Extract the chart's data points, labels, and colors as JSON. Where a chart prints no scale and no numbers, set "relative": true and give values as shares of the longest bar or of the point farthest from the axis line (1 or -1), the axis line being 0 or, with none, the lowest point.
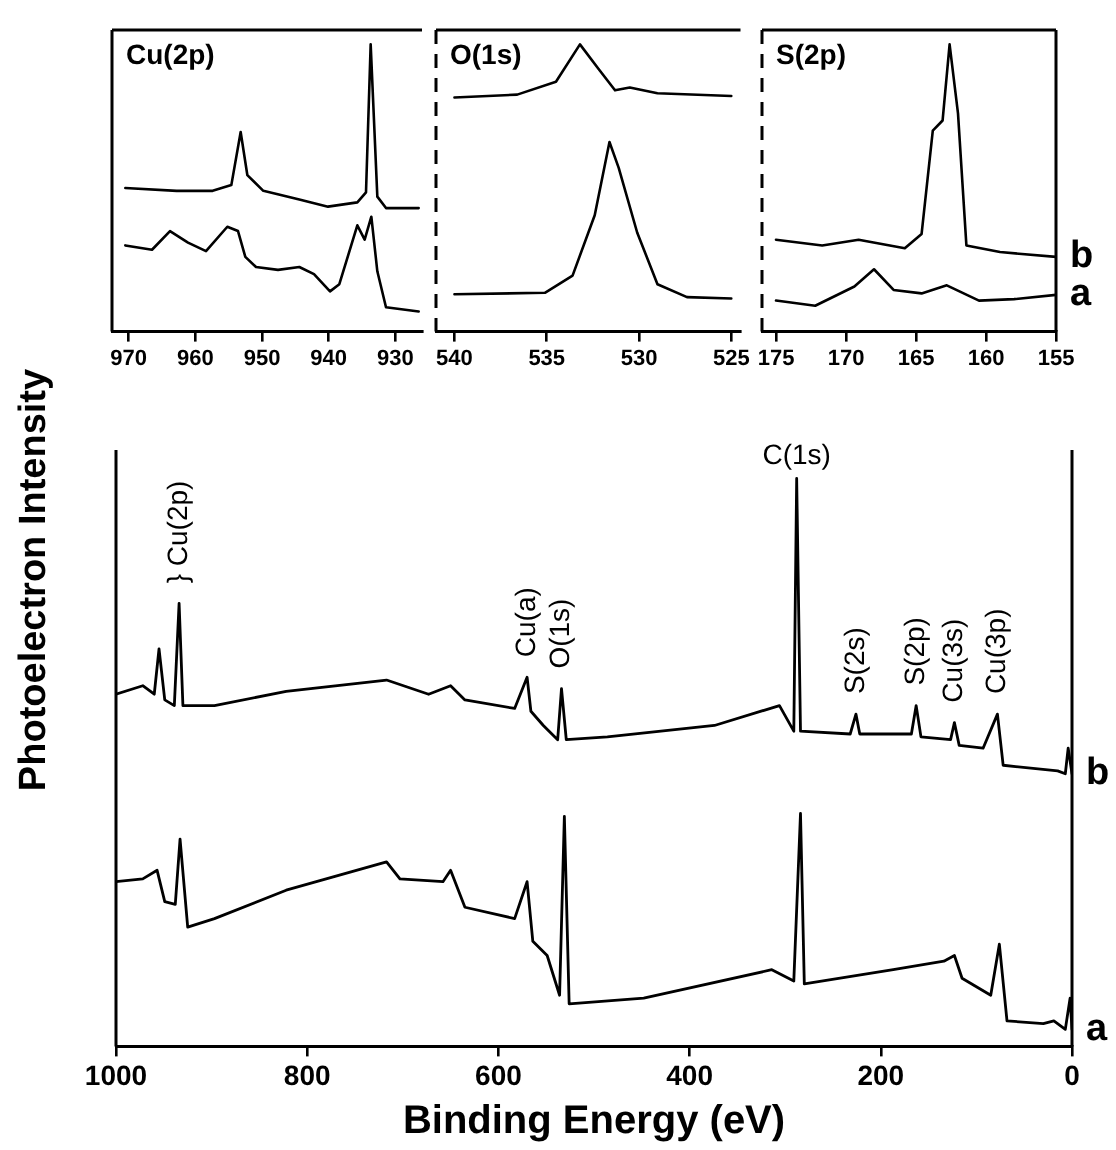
{
  "chart_data": [
    {
      "type": "line",
      "title": "Cu(2p)",
      "relative": true,
      "xlim": [
        972.5,
        926
      ],
      "xticks": [
        970,
        960,
        950,
        940,
        930
      ],
      "series": [
        {
          "color": "#000000",
          "x": [
            970.5,
            962.8,
            957.4,
            954.6,
            953.2,
            952.2,
            949.8,
            944.4,
            940.1,
            935.7,
            934.4,
            933.7,
            932.7,
            931.4,
            926.5
          ],
          "values": [
            0.5,
            0.49,
            0.49,
            0.51,
            0.695,
            0.545,
            0.49,
            0.46,
            0.435,
            0.45,
            0.485,
            1.0,
            0.47,
            0.43,
            0.43
          ]
        },
        {
          "color": "#000000",
          "x": [
            970.5,
            966.5,
            963.8,
            961.1,
            958.4,
            955.2,
            953.6,
            952.5,
            950.9,
            947.6,
            944.4,
            942.2,
            939.8,
            938.4,
            935.7,
            934.6,
            933.6,
            932.7,
            931.4,
            926.5
          ],
          "values": [
            0.3,
            0.285,
            0.35,
            0.31,
            0.28,
            0.365,
            0.35,
            0.26,
            0.225,
            0.215,
            0.225,
            0.2,
            0.14,
            0.165,
            0.37,
            0.32,
            0.4,
            0.21,
            0.085,
            0.07
          ]
        }
      ]
    },
    {
      "type": "line",
      "title": "O(1s)",
      "relative": true,
      "xlim": [
        541,
        524.5
      ],
      "xticks": [
        540,
        535,
        530,
        525
      ],
      "series": [
        {
          "color": "#000000",
          "x": [
            540,
            536.6,
            534.5,
            533.2,
            532.2,
            531.3,
            530.5,
            529.0,
            525
          ],
          "values": [
            0.815,
            0.825,
            0.87,
            1.0,
            0.915,
            0.84,
            0.85,
            0.83,
            0.82
          ]
        },
        {
          "color": "#000000",
          "x": [
            540,
            535.1,
            533.6,
            532.4,
            531.6,
            531.1,
            530.1,
            529.0,
            527.4,
            525
          ],
          "values": [
            0.13,
            0.135,
            0.195,
            0.405,
            0.66,
            0.57,
            0.345,
            0.165,
            0.12,
            0.115
          ]
        }
      ]
    },
    {
      "type": "line",
      "title": "S(2p)",
      "relative": true,
      "xlim": [
        176,
        155
      ],
      "xticks": [
        175,
        170,
        165,
        160,
        155
      ],
      "series": [
        {
          "name": "b",
          "color": "#000000",
          "x": [
            175,
            171.7,
            169.1,
            165.8,
            164.6,
            163.8,
            163.1,
            162.6,
            162.0,
            161.4,
            159.0,
            155
          ],
          "values": [
            0.32,
            0.3,
            0.32,
            0.29,
            0.34,
            0.7,
            0.735,
            1.0,
            0.76,
            0.3,
            0.277,
            0.26
          ]
        },
        {
          "name": "a",
          "color": "#000000",
          "x": [
            175,
            172.2,
            169.4,
            168.0,
            166.6,
            164.6,
            162.8,
            160.5,
            158.0,
            155
          ],
          "values": [
            0.108,
            0.09,
            0.157,
            0.217,
            0.145,
            0.133,
            0.161,
            0.108,
            0.113,
            0.128
          ]
        }
      ]
    },
    {
      "type": "line",
      "xlabel": "Binding Energy (eV)",
      "ylabel": "Photoelectron Intensity",
      "relative": true,
      "xlim": [
        1000,
        0
      ],
      "xticks": [
        1000,
        800,
        600,
        400,
        200,
        0
      ],
      "series": [
        {
          "name": "b",
          "color": "#000000",
          "x": [
            1000,
            972,
            960,
            955,
            949,
            939,
            934,
            930,
            897,
            822,
            717,
            673,
            650,
            635,
            583,
            570,
            566,
            553,
            538,
            534,
            529,
            486,
            374,
            306,
            291,
            288,
            284,
            232,
            226,
            222,
            168,
            163,
            158,
            127,
            123,
            118,
            93,
            78,
            72,
            15,
            7,
            4,
            0
          ],
          "values": [
            0.62,
            0.635,
            0.62,
            0.7,
            0.61,
            0.6,
            0.78,
            0.6,
            0.6,
            0.625,
            0.645,
            0.62,
            0.635,
            0.61,
            0.595,
            0.65,
            0.59,
            0.565,
            0.54,
            0.63,
            0.54,
            0.545,
            0.565,
            0.6,
            0.555,
            1.0,
            0.555,
            0.55,
            0.585,
            0.55,
            0.55,
            0.6,
            0.545,
            0.54,
            0.57,
            0.53,
            0.525,
            0.585,
            0.495,
            0.485,
            0.48,
            0.525,
            0.48
          ]
        },
        {
          "name": "a",
          "color": "#000000",
          "x": [
            1000,
            972,
            957,
            949,
            938,
            933,
            925,
            897,
            822,
            717,
            703,
            658,
            650,
            635,
            583,
            570,
            564,
            549,
            536,
            531,
            526,
            448,
            314,
            291,
            284,
            280,
            187,
            134,
            123,
            115,
            85,
            76,
            68,
            30,
            19,
            7,
            2,
            0
          ],
          "values": [
            0.29,
            0.295,
            0.31,
            0.255,
            0.25,
            0.365,
            0.21,
            0.225,
            0.275,
            0.325,
            0.295,
            0.29,
            0.31,
            0.245,
            0.225,
            0.29,
            0.185,
            0.16,
            0.09,
            0.405,
            0.075,
            0.085,
            0.135,
            0.115,
            0.41,
            0.11,
            0.135,
            0.15,
            0.16,
            0.12,
            0.09,
            0.18,
            0.045,
            0.04,
            0.045,
            0.03,
            0.085,
            0.03
          ]
        }
      ],
      "annotations": [
        {
          "text": "} Cu(2p)",
          "x": 934,
          "y": 0.78
        },
        {
          "text": "Cu(a)",
          "x": 570,
          "y": 0.65
        },
        {
          "text": "O(1s)",
          "x": 534,
          "y": 0.63
        },
        {
          "text": "C(1s)",
          "x": 288,
          "y": 1.0
        },
        {
          "text": "S(2s)",
          "x": 226,
          "y": 0.585
        },
        {
          "text": "S(2p)",
          "x": 163,
          "y": 0.6
        },
        {
          "text": "Cu(3s)",
          "x": 123,
          "y": 0.57
        },
        {
          "text": "Cu(3p)",
          "x": 78,
          "y": 0.585
        }
      ]
    }
  ]
}
